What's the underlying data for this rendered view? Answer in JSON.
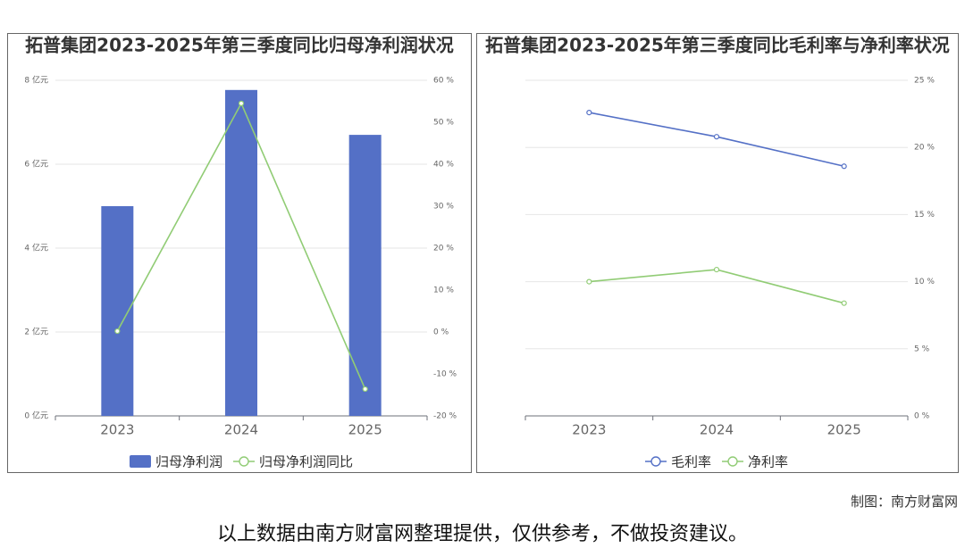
{
  "chart_data": [
    {
      "type": "bar",
      "title": "拓普集团2023-2025年第三季度同比归母净利润状况",
      "categories": [
        "2023",
        "2024",
        "2025"
      ],
      "series": [
        {
          "name": "归母净利润",
          "type": "bar",
          "color": "#5470c6",
          "values": [
            5.0,
            7.77,
            6.7
          ]
        },
        {
          "name": "归母净利润同比",
          "type": "line",
          "axis": "y2",
          "color": "#91cc75",
          "values": [
            0.2,
            54.5,
            -13.6
          ]
        }
      ],
      "ylim": [
        0,
        8
      ],
      "yticks": [
        {
          "value": 0,
          "label": "0 亿元"
        },
        {
          "value": 2,
          "label": "2 亿元"
        },
        {
          "value": 4,
          "label": "4 亿元"
        },
        {
          "value": 6,
          "label": "6 亿元"
        },
        {
          "value": 8,
          "label": "8 亿元"
        }
      ],
      "y2lim": [
        -20,
        60
      ],
      "y2ticks": [
        {
          "value": -20,
          "label": "-20 %"
        },
        {
          "value": -10,
          "label": "-10 %"
        },
        {
          "value": 0,
          "label": "0 %"
        },
        {
          "value": 10,
          "label": "10 %"
        },
        {
          "value": 20,
          "label": "20 %"
        },
        {
          "value": 30,
          "label": "30 %"
        },
        {
          "value": 40,
          "label": "40 %"
        },
        {
          "value": 50,
          "label": "50 %"
        },
        {
          "value": 60,
          "label": "60 %"
        }
      ],
      "grid": true,
      "legend": "bottom"
    },
    {
      "type": "line",
      "title": "拓普集团2023-2025年第三季度同比毛利率与净利率状况",
      "categories": [
        "2023",
        "2024",
        "2025"
      ],
      "series": [
        {
          "name": "毛利率",
          "type": "line",
          "axis": "y2",
          "color": "#5470c6",
          "values": [
            22.6,
            20.8,
            18.6
          ]
        },
        {
          "name": "净利率",
          "type": "line",
          "axis": "y2",
          "color": "#91cc75",
          "values": [
            10.0,
            10.9,
            8.4
          ]
        }
      ],
      "y2lim": [
        0,
        25
      ],
      "y2ticks": [
        {
          "value": 0,
          "label": "0 %"
        },
        {
          "value": 5,
          "label": "5 %"
        },
        {
          "value": 10,
          "label": "10 %"
        },
        {
          "value": 15,
          "label": "15 %"
        },
        {
          "value": 20,
          "label": "20 %"
        },
        {
          "value": 25,
          "label": "25 %"
        }
      ],
      "grid": true,
      "legend": "bottom"
    }
  ],
  "source": "制图：南方财富网",
  "disclaimer": "以上数据由南方财富网整理提供，仅供参考，不做投资建议。"
}
